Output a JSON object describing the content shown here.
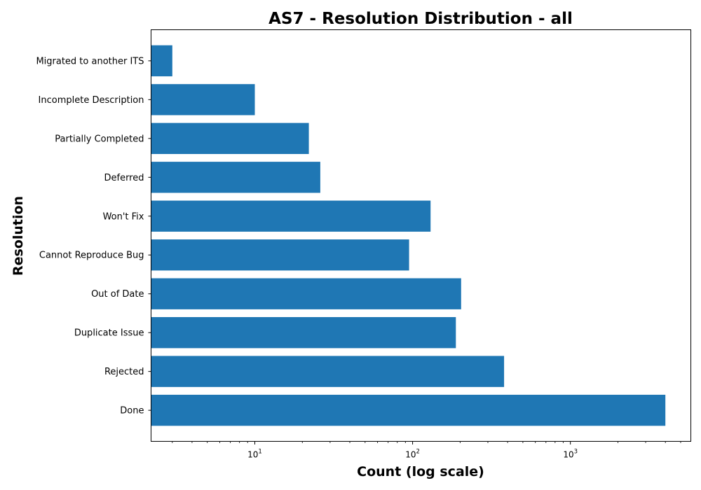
{
  "chart_data": {
    "type": "bar",
    "orientation": "horizontal",
    "title": "AS7 - Resolution Distribution - all",
    "xlabel": "Count (log scale)",
    "ylabel": "Resolution",
    "xscale": "log",
    "xlim": [
      2.2,
      5800
    ],
    "categories": [
      "Done",
      "Rejected",
      "Duplicate Issue",
      "Out of Date",
      "Cannot Reproduce Bug",
      "Won't Fix",
      "Deferred",
      "Partially Completed",
      "Incomplete Description",
      "Migrated to another ITS"
    ],
    "values": [
      4000,
      380,
      188,
      203,
      95,
      130,
      26,
      22,
      10,
      3
    ],
    "x_ticks": [
      {
        "base": "10",
        "exp": "1",
        "value": 10
      },
      {
        "base": "10",
        "exp": "2",
        "value": 100
      },
      {
        "base": "10",
        "exp": "3",
        "value": 1000
      }
    ],
    "bar_color": "#1f77b4",
    "grid": false,
    "legend": "none"
  }
}
